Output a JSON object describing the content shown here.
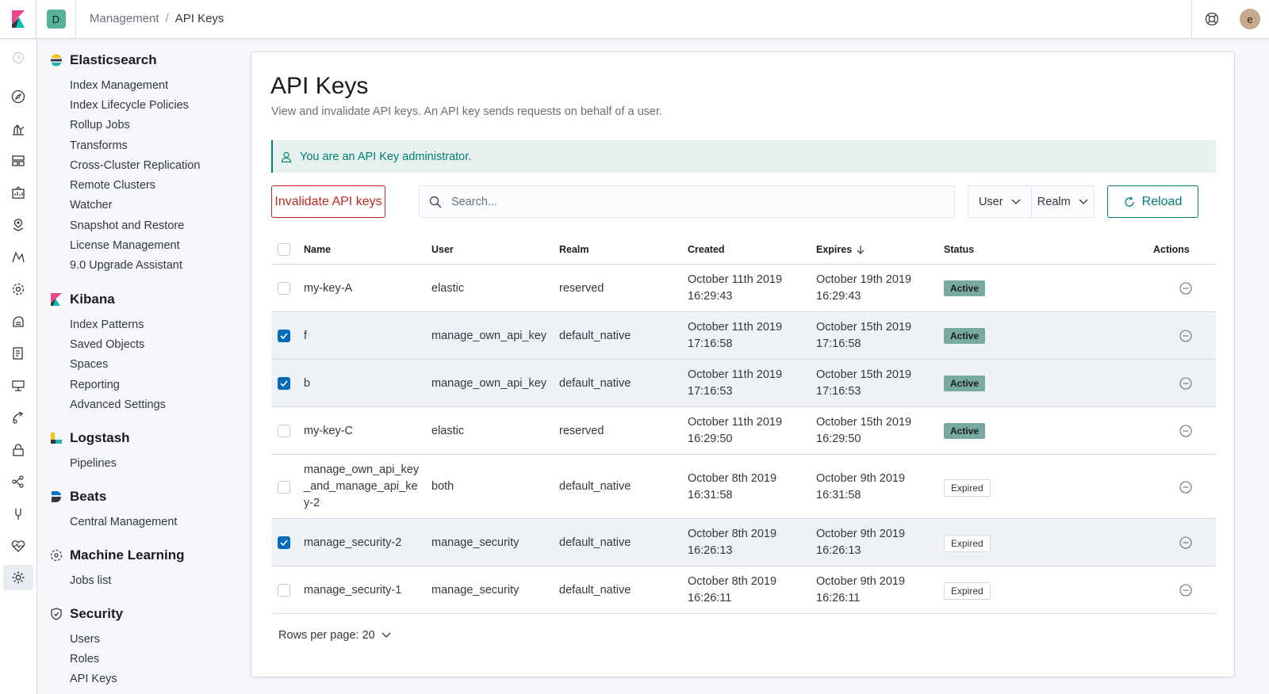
{
  "header": {
    "space_initial": "D",
    "breadcrumb": {
      "parent": "Management",
      "separator": "/",
      "current": "API Keys"
    },
    "user_initial": "e"
  },
  "sidebar": {
    "groups": [
      {
        "title": "Elasticsearch",
        "icon": "elasticsearch-icon",
        "items": [
          "Index Management",
          "Index Lifecycle Policies",
          "Rollup Jobs",
          "Transforms",
          "Cross-Cluster Replication",
          "Remote Clusters",
          "Watcher",
          "Snapshot and Restore",
          "License Management",
          "9.0 Upgrade Assistant"
        ]
      },
      {
        "title": "Kibana",
        "icon": "kibana-icon",
        "items": [
          "Index Patterns",
          "Saved Objects",
          "Spaces",
          "Reporting",
          "Advanced Settings"
        ]
      },
      {
        "title": "Logstash",
        "icon": "logstash-icon",
        "items": [
          "Pipelines"
        ]
      },
      {
        "title": "Beats",
        "icon": "beats-icon",
        "items": [
          "Central Management"
        ]
      },
      {
        "title": "Machine Learning",
        "icon": "machine-learning-icon",
        "items": [
          "Jobs list"
        ]
      },
      {
        "title": "Security",
        "icon": "security-icon",
        "items": [
          "Users",
          "Roles",
          "API Keys"
        ]
      }
    ]
  },
  "main": {
    "title": "API Keys",
    "description": "View and invalidate API keys. An API key sends requests on behalf of a user.",
    "callout": "You are an API Key administrator.",
    "invalidate_label": "Invalidate API keys",
    "search_placeholder": "Search...",
    "filters": {
      "user": "User",
      "realm": "Realm"
    },
    "reload_label": "Reload",
    "columns": {
      "name": "Name",
      "user": "User",
      "realm": "Realm",
      "created": "Created",
      "expires": "Expires",
      "status": "Status",
      "actions": "Actions"
    },
    "rows": [
      {
        "checked": false,
        "name": [
          "my-key-A"
        ],
        "user": "elastic",
        "realm": "reserved",
        "created": [
          "October 11th 2019",
          "16:29:43"
        ],
        "expires": [
          "October 19th 2019",
          "16:29:43"
        ],
        "status": "Active"
      },
      {
        "checked": true,
        "name": [
          "f"
        ],
        "user": "manage_own_api_key",
        "realm": "default_native",
        "created": [
          "October 11th 2019",
          "17:16:58"
        ],
        "expires": [
          "October 15th 2019",
          "17:16:58"
        ],
        "status": "Active"
      },
      {
        "checked": true,
        "name": [
          "b"
        ],
        "user": "manage_own_api_key",
        "realm": "default_native",
        "created": [
          "October 11th 2019",
          "17:16:53"
        ],
        "expires": [
          "October 15th 2019",
          "17:16:53"
        ],
        "status": "Active"
      },
      {
        "checked": false,
        "name": [
          "my-key-C"
        ],
        "user": "elastic",
        "realm": "reserved",
        "created": [
          "October 11th 2019",
          "16:29:50"
        ],
        "expires": [
          "October 15th 2019",
          "16:29:50"
        ],
        "status": "Active"
      },
      {
        "checked": false,
        "name": [
          "manage_own_api_key",
          "_and_manage_api_ke",
          "y-2"
        ],
        "user": "both",
        "realm": "default_native",
        "created": [
          "October 8th 2019",
          "16:31:58"
        ],
        "expires": [
          "October 9th 2019",
          "16:31:58"
        ],
        "status": "Expired"
      },
      {
        "checked": true,
        "name": [
          "manage_security-2"
        ],
        "user": "manage_security",
        "realm": "default_native",
        "created": [
          "October 8th 2019",
          "16:26:13"
        ],
        "expires": [
          "October 9th 2019",
          "16:26:13"
        ],
        "status": "Expired"
      },
      {
        "checked": false,
        "name": [
          "manage_security-1"
        ],
        "user": "manage_security",
        "realm": "default_native",
        "created": [
          "October 8th 2019",
          "16:26:11"
        ],
        "expires": [
          "October 9th 2019",
          "16:26:11"
        ],
        "status": "Expired"
      }
    ],
    "rows_per_page_label": "Rows per page: 20"
  },
  "colors": {
    "accent": "#017d73",
    "danger": "#bd271e",
    "checkbox": "#006bb8",
    "active_badge": "#79aaa0"
  }
}
